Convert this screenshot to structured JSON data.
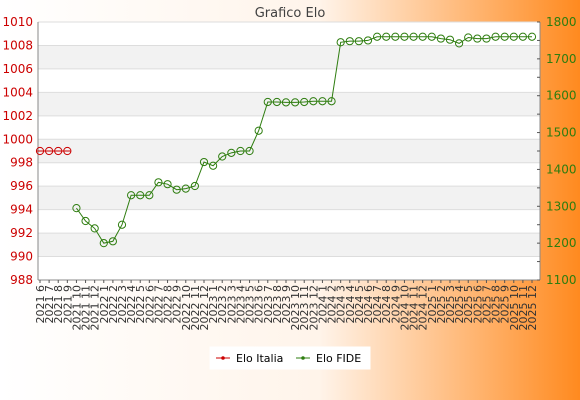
{
  "chart_data": {
    "type": "line",
    "title": "Grafico Elo",
    "categories": [
      "2021 6",
      "2021 7",
      "2021 8",
      "2021 9",
      "2021 10",
      "2021 11",
      "2021 12",
      "2022 1",
      "2022 2",
      "2022 3",
      "2022 4",
      "2022 5",
      "2022 6",
      "2022 7",
      "2022 8",
      "2022 9",
      "2022 10",
      "2022 11",
      "2022 12",
      "2023 1",
      "2023 2",
      "2023 3",
      "2023 4",
      "2023 5",
      "2023 6",
      "2023 7",
      "2023 8",
      "2023 9",
      "2023 10",
      "2023 11",
      "2023 12",
      "2024 1",
      "2024 2",
      "2024 3",
      "2024 4",
      "2024 5",
      "2024 6",
      "2024 7",
      "2024 8",
      "2024 9",
      "2024 10",
      "2024 11",
      "2024 12",
      "2025 1",
      "2025 2",
      "2025 3",
      "2025 4",
      "2025 5",
      "2025 6",
      "2025 7",
      "2025 8",
      "2025 9",
      "2025 10",
      "2025 11",
      "2025 12"
    ],
    "y_left": {
      "ylim": [
        988,
        1010
      ],
      "ticks": [
        988,
        990,
        992,
        994,
        996,
        998,
        1000,
        1002,
        1004,
        1006,
        1008,
        1010
      ],
      "color": "#cc0000"
    },
    "y_right": {
      "ylim": [
        1100,
        1800
      ],
      "ticks": [
        1100,
        1200,
        1300,
        1400,
        1500,
        1600,
        1700,
        1800
      ],
      "color": "#2e7d0f"
    },
    "series": [
      {
        "name": "Elo Italia",
        "axis": "left",
        "color": "#cc0000",
        "marker": "circle-plus",
        "values": [
          999,
          999,
          999,
          999,
          null,
          null,
          null,
          null,
          null,
          null,
          null,
          null,
          null,
          null,
          null,
          null,
          null,
          null,
          null,
          null,
          null,
          null,
          null,
          null,
          null,
          null,
          null,
          null,
          null,
          null,
          null,
          null,
          null,
          null,
          null,
          null,
          null,
          null,
          null,
          null,
          null,
          null,
          null,
          null,
          null,
          null,
          null,
          null,
          null,
          null,
          null,
          null,
          null,
          null,
          null
        ]
      },
      {
        "name": "Elo FIDE",
        "axis": "right",
        "color": "#2e7d0f",
        "marker": "circle",
        "values": [
          null,
          null,
          null,
          null,
          1295,
          1260,
          1240,
          1200,
          1205,
          1250,
          1330,
          1330,
          1330,
          1365,
          1360,
          1345,
          1348,
          1355,
          1420,
          1410,
          1435,
          1445,
          1450,
          1450,
          1505,
          1583,
          1583,
          1582,
          1582,
          1583,
          1585,
          1585,
          1585,
          1745,
          1748,
          1748,
          1750,
          1760,
          1760,
          1760,
          1760,
          1760,
          1760,
          1760,
          1755,
          1752,
          1742,
          1758,
          1755,
          1755,
          1760,
          1760,
          1760,
          1760,
          1760
        ]
      }
    ],
    "legend": {
      "position": "bottom-center",
      "entries": [
        "Elo Italia",
        "Elo FIDE"
      ]
    },
    "grid": true,
    "background": {
      "plot_stripes": [
        "#ffffff",
        "#f2f2f2"
      ],
      "outer_gradient": [
        "#ffffff",
        "#ff8a1f"
      ]
    }
  }
}
